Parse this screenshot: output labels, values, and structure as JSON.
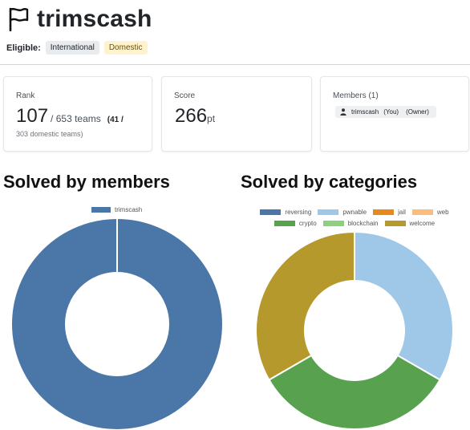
{
  "team": {
    "name": "trimscash"
  },
  "eligible": {
    "label": "Eligible:",
    "badges": [
      "International",
      "Domestic"
    ]
  },
  "rank": {
    "label": "Rank",
    "value": "107",
    "total": "/ 653 teams",
    "domestic_part1": "(41 /",
    "domestic_part2": "303 domestic teams)"
  },
  "score": {
    "label": "Score",
    "value": "266",
    "unit": "pt"
  },
  "members": {
    "label": "Members (1)",
    "list": [
      {
        "name": "trimscash",
        "you": "(You)",
        "role": "(Owner)"
      }
    ]
  },
  "colors": {
    "reversing": "#4a76a8",
    "pwnable": "#9fc8e8",
    "jail": "#e8891c",
    "web": "#fbbd7c",
    "crypto": "#58a14e",
    "blockchain": "#8dd17e",
    "welcome": "#b6992d"
  },
  "chart_data": [
    {
      "type": "pie",
      "title": "Solved by members",
      "legend": [
        "trimscash"
      ],
      "categories": [
        "trimscash"
      ],
      "values": [
        1
      ],
      "colors": [
        "#4a76a8"
      ]
    },
    {
      "type": "pie",
      "title": "Solved by categories",
      "legend": [
        "reversing",
        "pwnable",
        "jail",
        "web",
        "crypto",
        "blockchain",
        "welcome"
      ],
      "categories": [
        "reversing",
        "pwnable",
        "jail",
        "web",
        "crypto",
        "blockchain",
        "welcome"
      ],
      "values": [
        0,
        1,
        0,
        0,
        1,
        0,
        1
      ],
      "colors": [
        "#4a76a8",
        "#9fc8e8",
        "#e8891c",
        "#fbbd7c",
        "#58a14e",
        "#8dd17e",
        "#b6992d"
      ]
    }
  ]
}
